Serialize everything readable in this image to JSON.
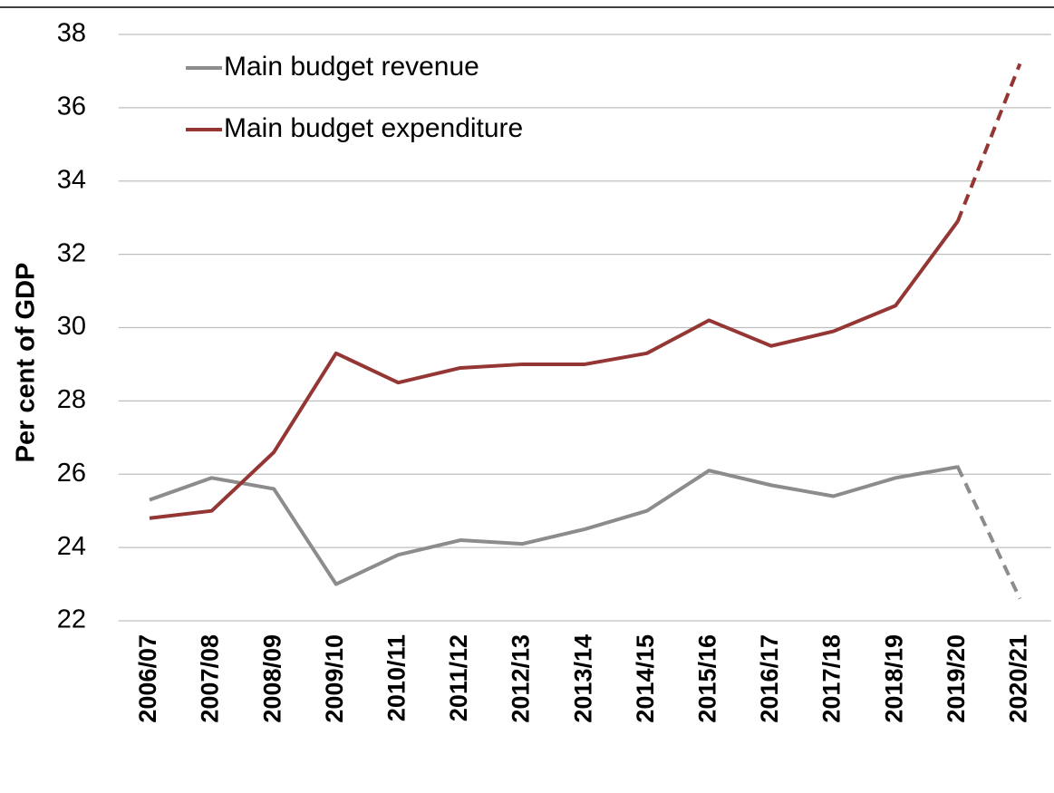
{
  "chart_data": {
    "type": "line",
    "y_label": "Per cent of GDP",
    "categories": [
      "2006/07",
      "2007/08",
      "2008/09",
      "2009/10",
      "2010/11",
      "2011/12",
      "2012/13",
      "2013/14",
      "2014/15",
      "2015/16",
      "2016/17",
      "2017/18",
      "2018/19",
      "2019/20",
      "2020/21"
    ],
    "series": [
      {
        "name": "Main budget revenue",
        "color": "#8c8c8c",
        "dash_from": 13,
        "values": [
          25.3,
          25.9,
          25.6,
          23.0,
          23.8,
          24.2,
          24.1,
          24.5,
          25.0,
          26.1,
          25.7,
          25.4,
          25.9,
          26.2,
          22.6
        ]
      },
      {
        "name": "Main budget expenditure",
        "color": "#943634",
        "dash_from": 13,
        "values": [
          24.8,
          25.0,
          26.6,
          29.3,
          28.5,
          28.9,
          29.0,
          29.0,
          29.3,
          30.2,
          29.5,
          29.9,
          30.6,
          32.9,
          37.2
        ]
      }
    ],
    "ylim": [
      22,
      38
    ],
    "yticks": [
      22,
      24,
      26,
      28,
      30,
      32,
      34,
      36,
      38
    ],
    "grid": true,
    "legend": "top-left"
  }
}
